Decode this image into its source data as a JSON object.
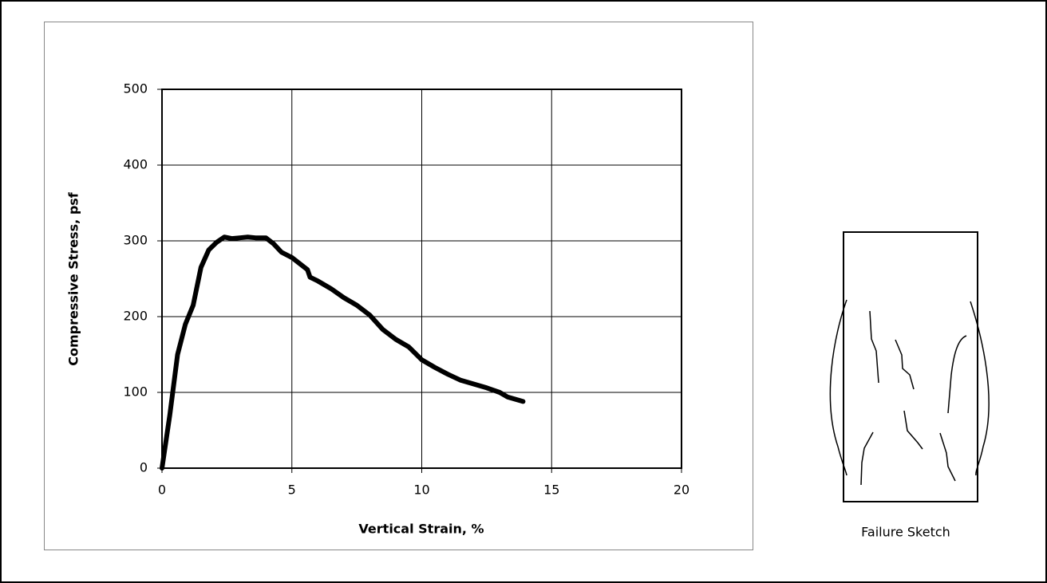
{
  "chart_data": {
    "type": "line",
    "xlabel": "Vertical Strain, %",
    "ylabel": "Compressive Stress, psf",
    "x": [
      0,
      0.3,
      0.6,
      0.9,
      1.2,
      1.5,
      1.8,
      2.1,
      2.4,
      2.7,
      3.0,
      3.3,
      3.6,
      4.0,
      4.3,
      4.6,
      5.0,
      5.3,
      5.6,
      5.7,
      6.0,
      6.5,
      7.0,
      7.5,
      8.0,
      8.5,
      9.0,
      9.5,
      10.0,
      10.5,
      11.0,
      11.5,
      12.0,
      12.5,
      13.0,
      13.3,
      13.9
    ],
    "series": [
      {
        "color": "#000000",
        "values": [
          0,
          70,
          150,
          190,
          215,
          265,
          288,
          298,
          305,
          303,
          304,
          305,
          304,
          304,
          296,
          285,
          278,
          270,
          262,
          252,
          247,
          237,
          225,
          215,
          202,
          183,
          170,
          160,
          143,
          133,
          124,
          116,
          111,
          106,
          100,
          94,
          88
        ]
      }
    ],
    "xlim": [
      0,
      20
    ],
    "xticks": [
      0,
      5,
      10,
      15,
      20
    ],
    "ylim": [
      0,
      500
    ],
    "yticks": [
      0,
      100,
      200,
      300,
      400,
      500
    ],
    "grid": true
  },
  "sketch_label": "Failure Sketch"
}
